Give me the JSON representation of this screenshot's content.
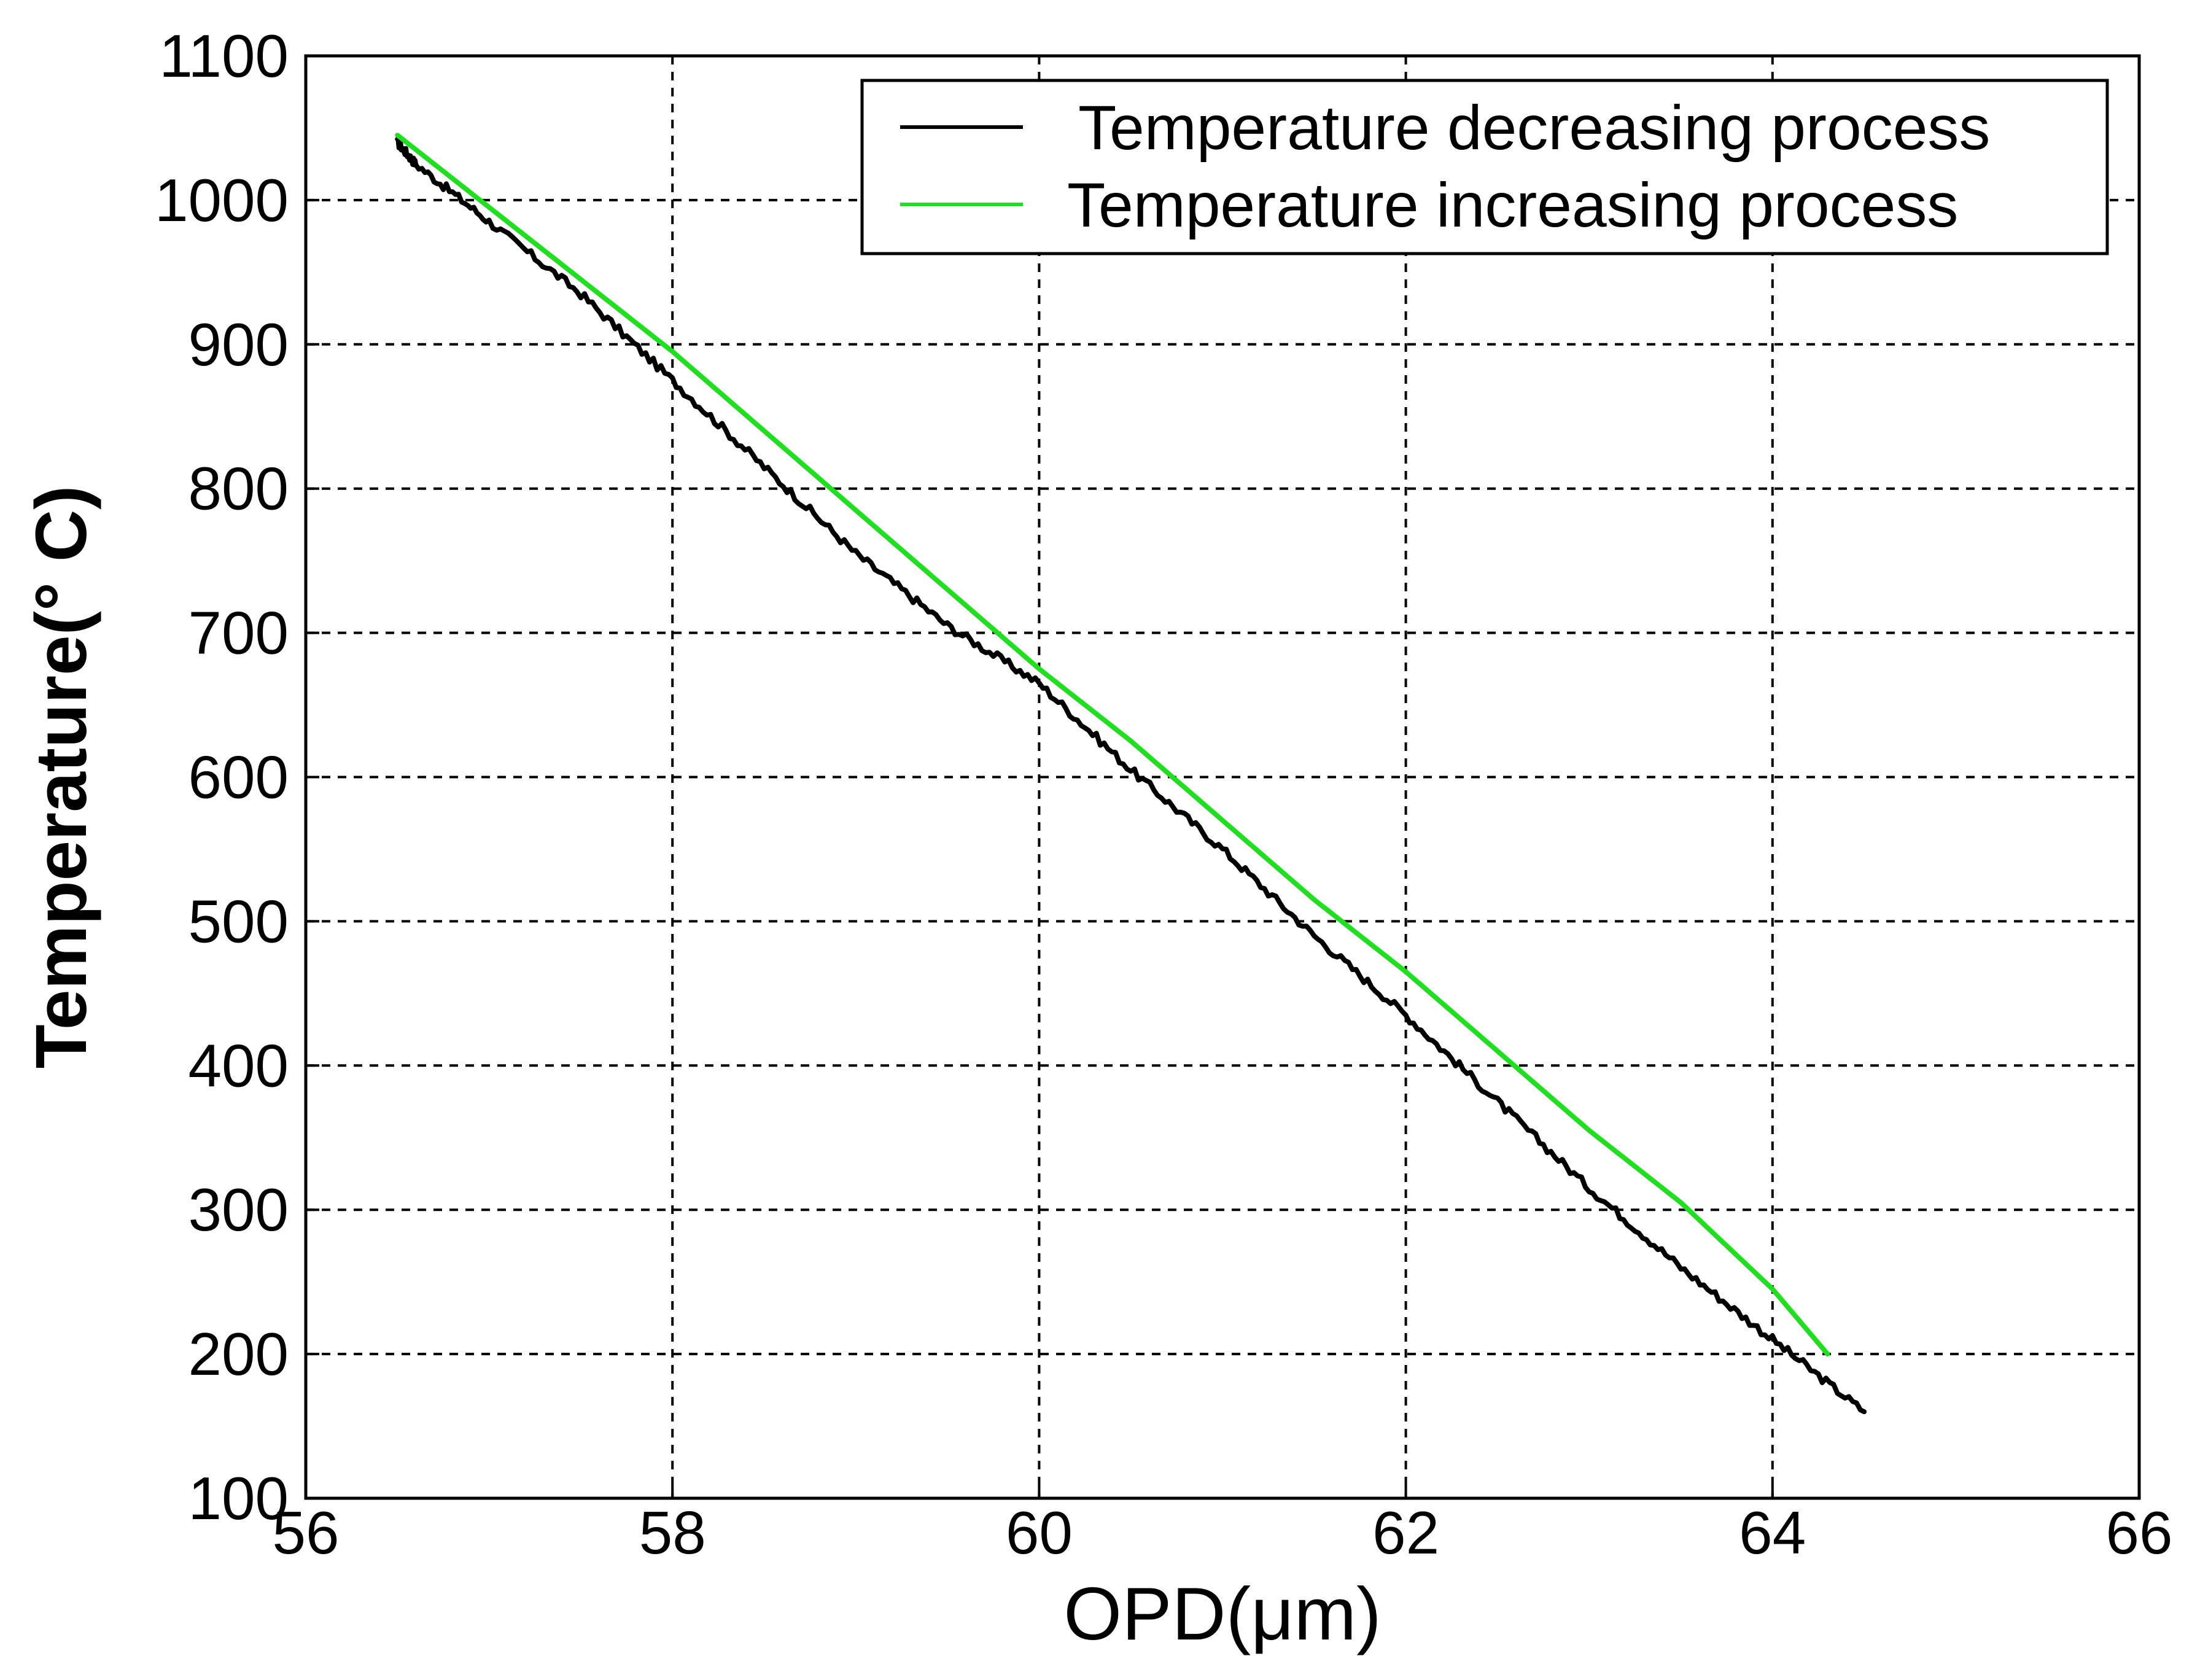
{
  "chart_data": {
    "type": "line",
    "title": "",
    "xlabel": "OPD(μm)",
    "ylabel": "Temperature(° C)",
    "xlim": [
      56,
      66
    ],
    "ylim": [
      100,
      1100
    ],
    "xticks": [
      56,
      58,
      60,
      62,
      64,
      66
    ],
    "yticks": [
      100,
      200,
      300,
      400,
      500,
      600,
      700,
      800,
      900,
      1000,
      1100
    ],
    "grid": true,
    "legend_position": "top-right",
    "series": [
      {
        "name": "Temperature decreasing process",
        "color": "#000000",
        "x": [
          56.5,
          56.6,
          57.0,
          57.5,
          58.0,
          58.5,
          59.0,
          59.5,
          60.0,
          60.5,
          61.0,
          61.5,
          62.0,
          62.5,
          63.0,
          63.5,
          64.0,
          64.5
        ],
        "y": [
          1040,
          1025,
          985,
          935,
          875,
          815,
          755,
          705,
          665,
          605,
          550,
          490,
          435,
          375,
          315,
          260,
          210,
          160
        ]
      },
      {
        "name": "Temperature increasing process",
        "color": "#22dd22",
        "x": [
          56.5,
          56.6,
          57.0,
          57.5,
          58.0,
          58.5,
          59.0,
          59.5,
          60.0,
          60.5,
          61.0,
          61.5,
          62.0,
          62.5,
          63.0,
          63.5,
          64.0,
          64.3
        ],
        "y": [
          1045,
          1035,
          995,
          945,
          895,
          840,
          785,
          730,
          675,
          625,
          570,
          515,
          465,
          410,
          355,
          305,
          245,
          200
        ]
      }
    ]
  }
}
